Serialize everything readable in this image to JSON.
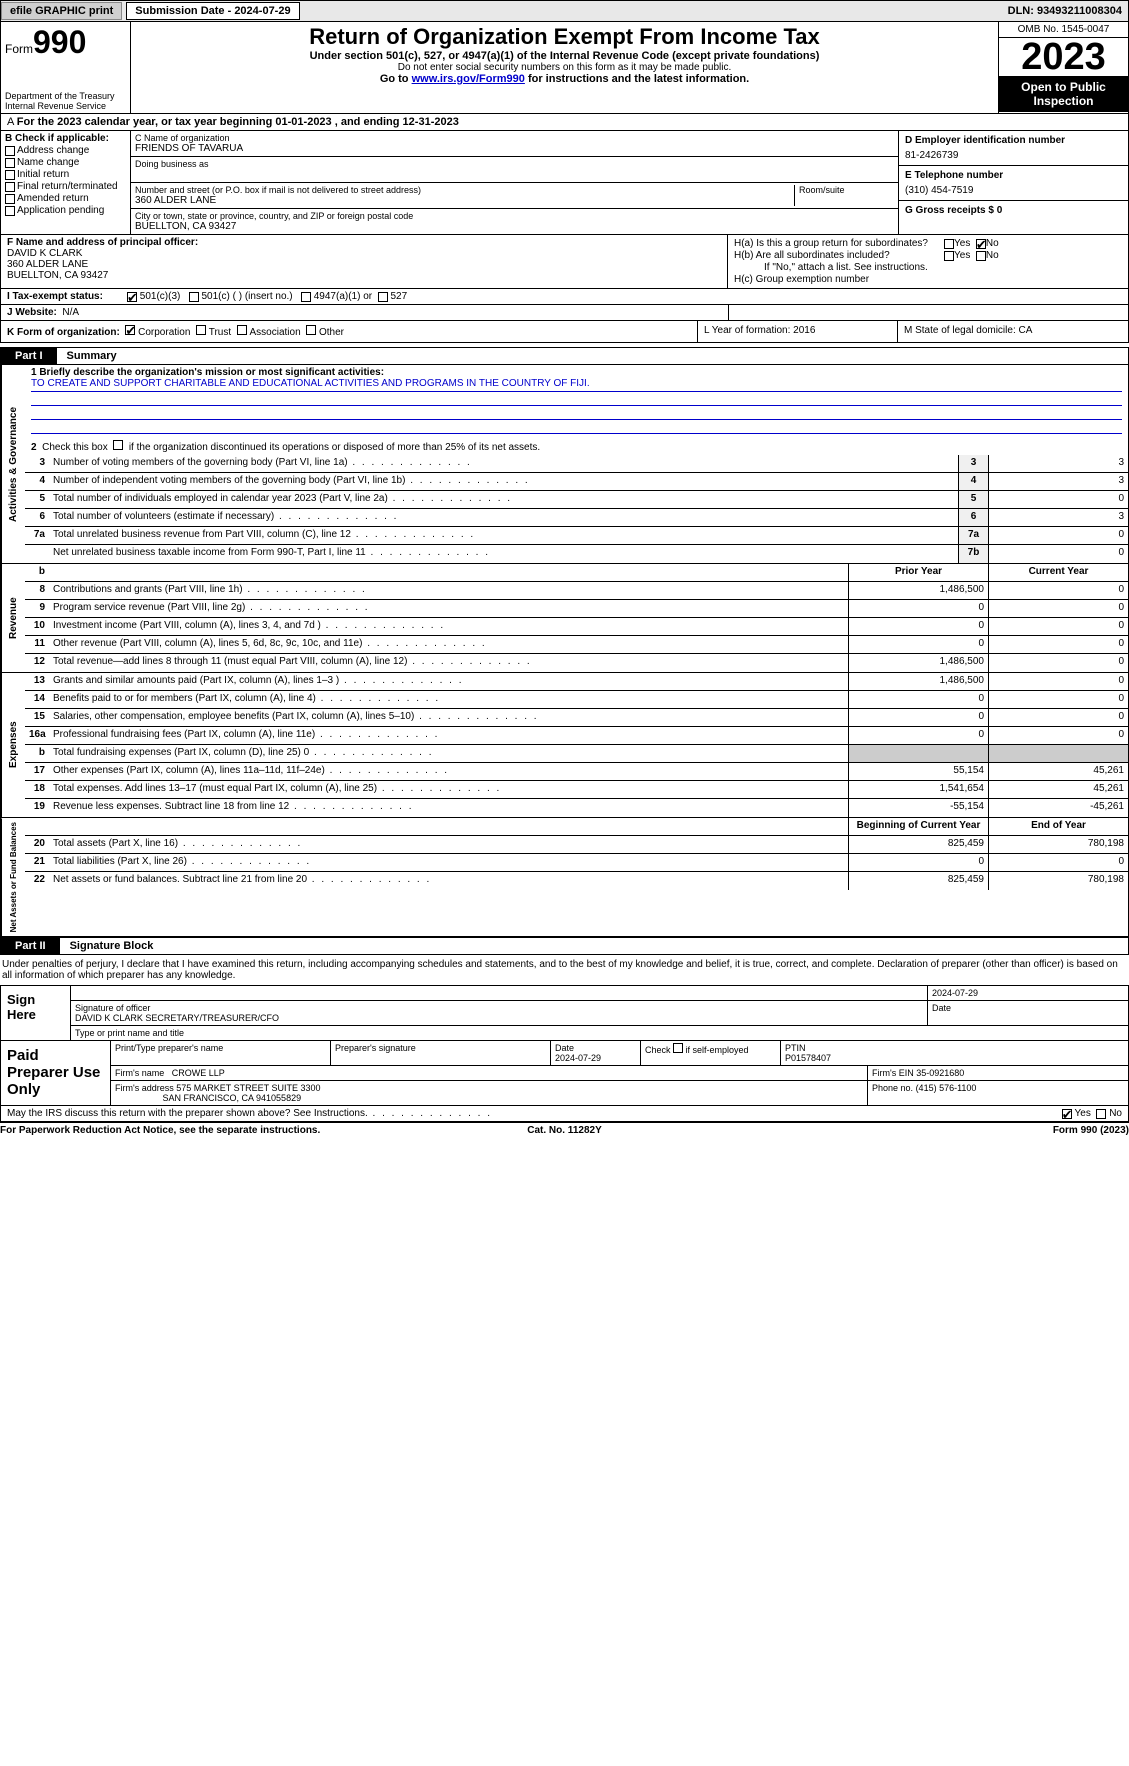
{
  "topbar": {
    "efile_btn": "efile GRAPHIC print",
    "sub_date_label": "Submission Date - 2024-07-29",
    "dln": "DLN: 93493211008304"
  },
  "header": {
    "form_label": "Form",
    "form_no": "990",
    "dept": "Department of the Treasury Internal Revenue Service",
    "title": "Return of Organization Exempt From Income Tax",
    "sub1": "Under section 501(c), 527, or 4947(a)(1) of the Internal Revenue Code (except private foundations)",
    "sub2": "Do not enter social security numbers on this form as it may be made public.",
    "sub3_pre": "Go to ",
    "sub3_link": "www.irs.gov/Form990",
    "sub3_post": " for instructions and the latest information.",
    "omb": "OMB No. 1545-0047",
    "year": "2023",
    "open": "Open to Public Inspection"
  },
  "line_a": "For the 2023 calendar year, or tax year beginning 01-01-2023   , and ending 12-31-2023",
  "col_b": {
    "label": "B Check if applicable:",
    "items": [
      "Address change",
      "Name change",
      "Initial return",
      "Final return/terminated",
      "Amended return",
      "Application pending"
    ]
  },
  "col_c": {
    "name_lbl": "C Name of organization",
    "name_val": "FRIENDS OF TAVARUA",
    "dba_lbl": "Doing business as",
    "addr_lbl": "Number and street (or P.O. box if mail is not delivered to street address)",
    "addr_val": "360 ALDER LANE",
    "room_lbl": "Room/suite",
    "city_lbl": "City or town, state or province, country, and ZIP or foreign postal code",
    "city_val": "BUELLTON, CA  93427"
  },
  "col_d": {
    "d_lbl": "D Employer identification number",
    "d_val": "81-2426739",
    "e_lbl": "E Telephone number",
    "e_val": "(310) 454-7519",
    "g_lbl": "G Gross receipts $ 0"
  },
  "col_f": {
    "lbl": "F  Name and address of principal officer:",
    "name": "DAVID K CLARK",
    "addr1": "360 ALDER LANE",
    "addr2": "BUELLTON, CA  93427"
  },
  "col_h": {
    "ha_lbl": "H(a)  Is this a group return for subordinates?",
    "hb_lbl": "H(b)  Are all subordinates included?",
    "hb_note": "If \"No,\" attach a list. See instructions.",
    "hc_lbl": "H(c)  Group exemption number",
    "yes": "Yes",
    "no": "No"
  },
  "tax_status": {
    "lbl": "I   Tax-exempt status:",
    "o1": "501(c)(3)",
    "o2": "501(c) (  ) (insert no.)",
    "o3": "4947(a)(1) or",
    "o4": "527"
  },
  "website": {
    "lbl": "J   Website:",
    "val": "N/A"
  },
  "row_k": {
    "k_lbl": "K Form of organization:",
    "k_opts": [
      "Corporation",
      "Trust",
      "Association",
      "Other"
    ],
    "l_lbl": "L Year of formation: 2016",
    "m_lbl": "M State of legal domicile: CA"
  },
  "part1": {
    "num": "Part I",
    "title": "Summary"
  },
  "mission": {
    "q1_lbl": "1   Briefly describe the organization's mission or most significant activities:",
    "q1_val": "TO CREATE AND SUPPORT CHARITABLE AND EDUCATIONAL ACTIVITIES AND PROGRAMS IN THE COUNTRY OF FIJI.",
    "q2_lbl": "2   Check this box          if the organization discontinued its operations or disposed of more than 25% of its net assets."
  },
  "gov_rows": [
    {
      "n": "3",
      "d": "Number of voting members of the governing body (Part VI, line 1a)",
      "bn": "3",
      "bv": "3"
    },
    {
      "n": "4",
      "d": "Number of independent voting members of the governing body (Part VI, line 1b)",
      "bn": "4",
      "bv": "3"
    },
    {
      "n": "5",
      "d": "Total number of individuals employed in calendar year 2023 (Part V, line 2a)",
      "bn": "5",
      "bv": "0"
    },
    {
      "n": "6",
      "d": "Total number of volunteers (estimate if necessary)",
      "bn": "6",
      "bv": "3"
    },
    {
      "n": "7a",
      "d": "Total unrelated business revenue from Part VIII, column (C), line 12",
      "bn": "7a",
      "bv": "0"
    },
    {
      "n": "",
      "d": "Net unrelated business taxable income from Form 990-T, Part I, line 11",
      "bn": "7b",
      "bv": "0"
    }
  ],
  "pycy_hdr": {
    "b": "b",
    "py": "Prior Year",
    "cy": "Current Year"
  },
  "revenue_rows": [
    {
      "n": "8",
      "d": "Contributions and grants (Part VIII, line 1h)",
      "py": "1,486,500",
      "cy": "0"
    },
    {
      "n": "9",
      "d": "Program service revenue (Part VIII, line 2g)",
      "py": "0",
      "cy": "0"
    },
    {
      "n": "10",
      "d": "Investment income (Part VIII, column (A), lines 3, 4, and 7d )",
      "py": "0",
      "cy": "0"
    },
    {
      "n": "11",
      "d": "Other revenue (Part VIII, column (A), lines 5, 6d, 8c, 9c, 10c, and 11e)",
      "py": "0",
      "cy": "0"
    },
    {
      "n": "12",
      "d": "Total revenue—add lines 8 through 11 (must equal Part VIII, column (A), line 12)",
      "py": "1,486,500",
      "cy": "0"
    }
  ],
  "expense_rows": [
    {
      "n": "13",
      "d": "Grants and similar amounts paid (Part IX, column (A), lines 1–3 )",
      "py": "1,486,500",
      "cy": "0"
    },
    {
      "n": "14",
      "d": "Benefits paid to or for members (Part IX, column (A), line 4)",
      "py": "0",
      "cy": "0"
    },
    {
      "n": "15",
      "d": "Salaries, other compensation, employee benefits (Part IX, column (A), lines 5–10)",
      "py": "0",
      "cy": "0"
    },
    {
      "n": "16a",
      "d": "Professional fundraising fees (Part IX, column (A), line 11e)",
      "py": "0",
      "cy": "0"
    },
    {
      "n": "b",
      "d": "Total fundraising expenses (Part IX, column (D), line 25) 0",
      "py": "",
      "cy": "",
      "shaded": true
    },
    {
      "n": "17",
      "d": "Other expenses (Part IX, column (A), lines 11a–11d, 11f–24e)",
      "py": "55,154",
      "cy": "45,261"
    },
    {
      "n": "18",
      "d": "Total expenses. Add lines 13–17 (must equal Part IX, column (A), line 25)",
      "py": "1,541,654",
      "cy": "45,261"
    },
    {
      "n": "19",
      "d": "Revenue less expenses. Subtract line 18 from line 12",
      "py": "-55,154",
      "cy": "-45,261"
    }
  ],
  "na_hdr": {
    "py": "Beginning of Current Year",
    "cy": "End of Year"
  },
  "na_rows": [
    {
      "n": "20",
      "d": "Total assets (Part X, line 16)",
      "py": "825,459",
      "cy": "780,198"
    },
    {
      "n": "21",
      "d": "Total liabilities (Part X, line 26)",
      "py": "0",
      "cy": "0"
    },
    {
      "n": "22",
      "d": "Net assets or fund balances. Subtract line 21 from line 20",
      "py": "825,459",
      "cy": "780,198"
    }
  ],
  "part2": {
    "num": "Part II",
    "title": "Signature Block"
  },
  "sig_intro": "Under penalties of perjury, I declare that I have examined this return, including accompanying schedules and statements, and to the best of my knowledge and belief, it is true, correct, and complete. Declaration of preparer (other than officer) is based on all information of which preparer has any knowledge.",
  "sign": {
    "here": "Sign Here",
    "date": "2024-07-29",
    "sig_lbl": "Signature of officer",
    "name": "DAVID K CLARK  SECRETARY/TREASURER/CFO",
    "type_lbl": "Type or print name and title",
    "date_lbl": "Date"
  },
  "prep": {
    "title": "Paid Preparer Use Only",
    "pname_lbl": "Print/Type preparer's name",
    "psig_lbl": "Preparer's signature",
    "pdate_lbl": "Date",
    "pdate_val": "2024-07-29",
    "pself_lbl": "Check        if self-employed",
    "ptin_lbl": "PTIN",
    "ptin_val": "P01578407",
    "fname_lbl": "Firm's name",
    "fname_val": "CROWE LLP",
    "fein_lbl": "Firm's EIN",
    "fein_val": "35-0921680",
    "faddr_lbl": "Firm's address",
    "faddr1": "575 MARKET STREET SUITE 3300",
    "faddr2": "SAN FRANCISCO, CA  941055829",
    "fphone_lbl": "Phone no.",
    "fphone_val": "(415) 576-1100"
  },
  "discuss": {
    "q": "May the IRS discuss this return with the preparer shown above? See Instructions.",
    "yes": "Yes",
    "no": "No"
  },
  "footer": {
    "l": "For Paperwork Reduction Act Notice, see the separate instructions.",
    "c": "Cat. No. 11282Y",
    "r_pre": "Form ",
    "r_form": "990",
    "r_post": " (2023)"
  },
  "vert": {
    "gov": "Activities & Governance",
    "rev": "Revenue",
    "exp": "Expenses",
    "na": "Net Assets or Fund Balances"
  }
}
